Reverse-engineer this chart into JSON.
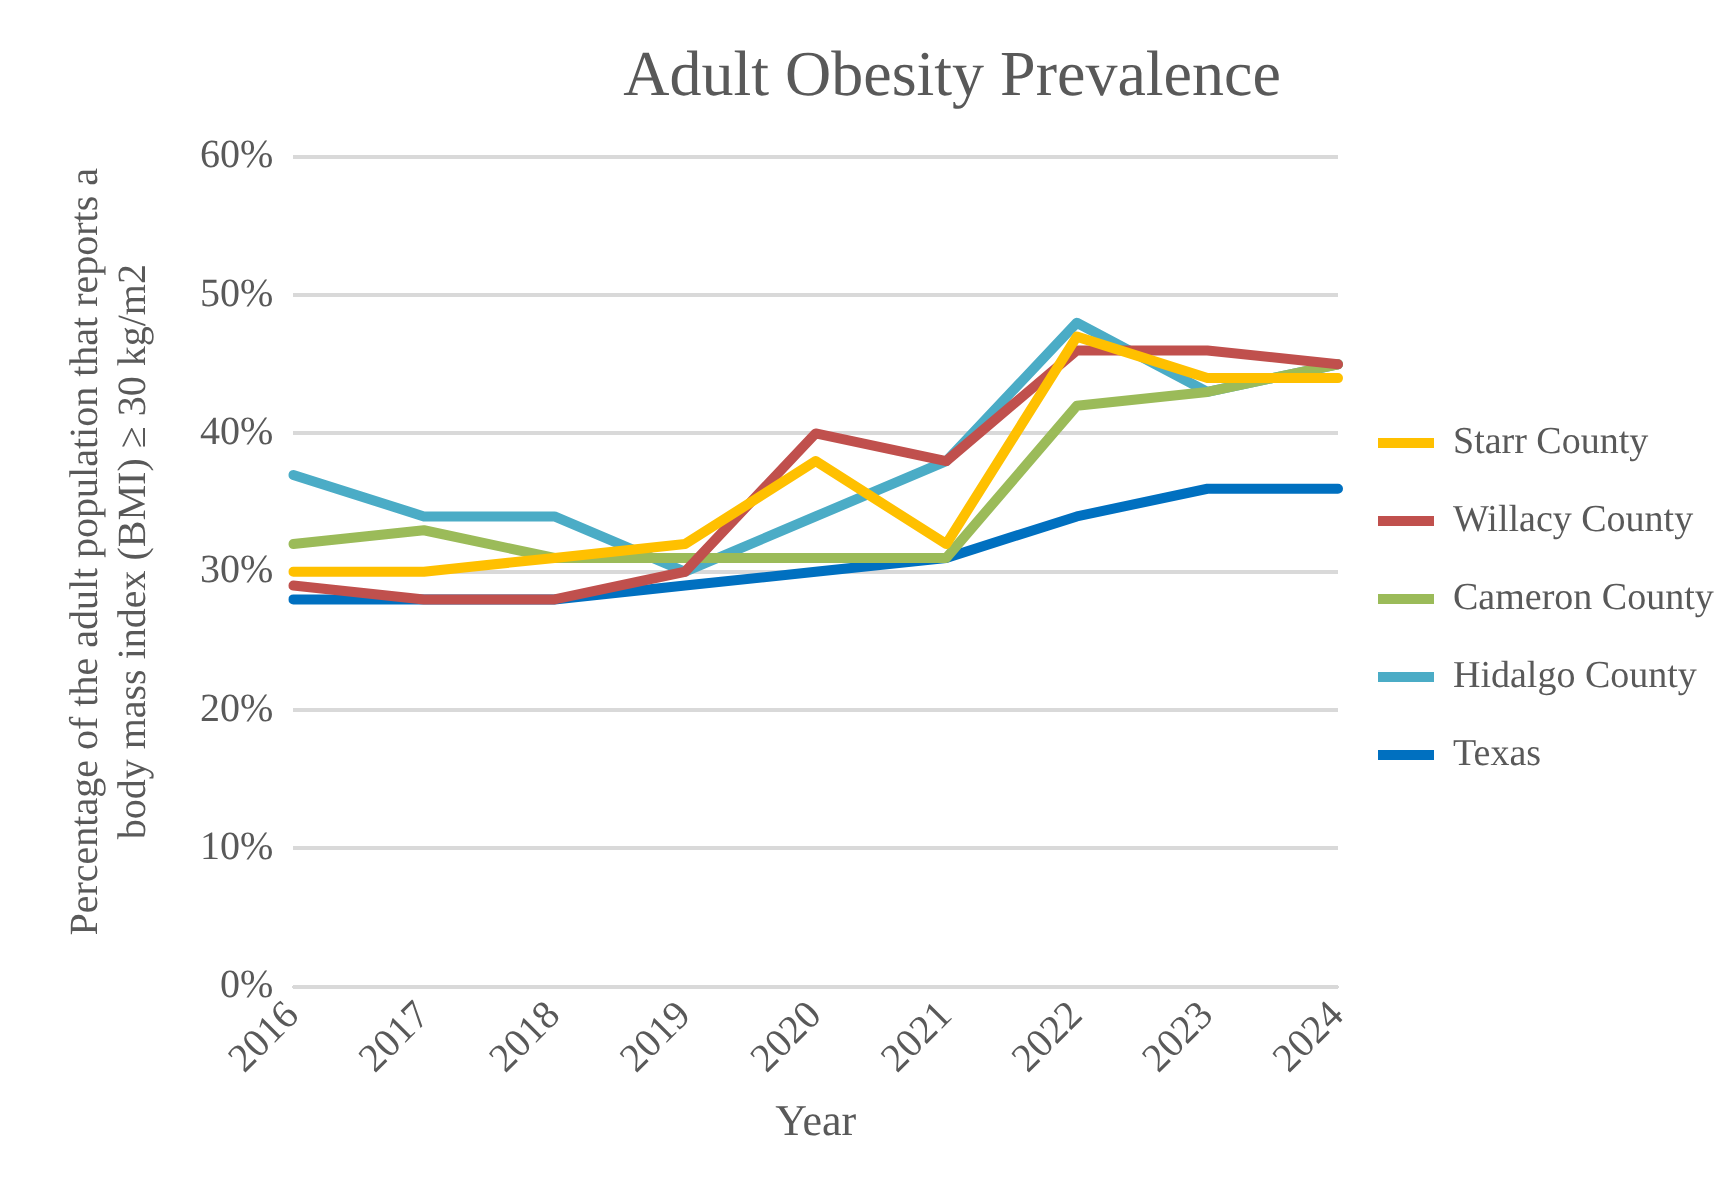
{
  "chart_data": {
    "type": "line",
    "title": "Adult Obesity Prevalence",
    "xlabel": "Year",
    "ylabel": "Percentage of the adult population that reports a body mass index (BMI) ≥ 30 kg/m2",
    "categories": [
      "2016",
      "2017",
      "2018",
      "2019",
      "2020",
      "2021",
      "2022",
      "2023",
      "2024"
    ],
    "series": [
      {
        "name": "Starr County",
        "color": "#ffc000",
        "values": [
          30,
          30,
          31,
          32,
          38,
          32,
          47,
          44,
          44
        ]
      },
      {
        "name": "Willacy County",
        "color": "#c0504d",
        "values": [
          29,
          28,
          28,
          30,
          40,
          38,
          46,
          46,
          45
        ]
      },
      {
        "name": "Cameron County",
        "color": "#9bbb59",
        "values": [
          32,
          33,
          31,
          31,
          31,
          31,
          42,
          43,
          45
        ]
      },
      {
        "name": "Hidalgo County",
        "color": "#4bacc6",
        "values": [
          37,
          34,
          34,
          30,
          34,
          38,
          48,
          43,
          45
        ]
      },
      {
        "name": "Texas",
        "color": "#0070c0",
        "values": [
          28,
          28,
          28,
          29,
          30,
          31,
          34,
          36,
          36
        ]
      }
    ],
    "ylim": [
      0,
      60
    ],
    "yticks": [
      {
        "value": 0,
        "label": "0%"
      },
      {
        "value": 10,
        "label": "10%"
      },
      {
        "value": 20,
        "label": "20%"
      },
      {
        "value": 30,
        "label": "30%"
      },
      {
        "value": 40,
        "label": "40%"
      },
      {
        "value": 50,
        "label": "50%"
      },
      {
        "value": 60,
        "label": "60%"
      }
    ],
    "grid": "y",
    "legend": "right",
    "marker": "none",
    "line_style": "solid"
  }
}
